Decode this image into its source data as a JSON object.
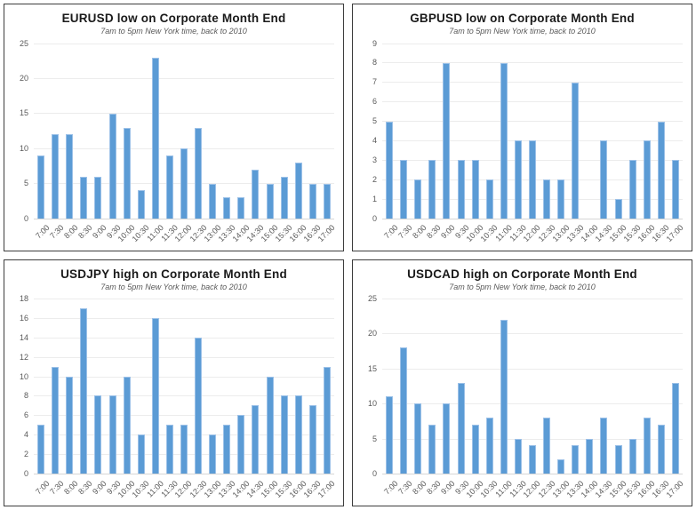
{
  "colors": {
    "bar": "#5b9bd5",
    "bar_edge": "#9cc1e8",
    "gridline": "#ececec",
    "axis_line": "#d6d6d6",
    "panel_border": "#3d3d3d",
    "title": "#1a1a1a",
    "subtitle": "#595959",
    "tick": "#595959",
    "background": "#ffffff"
  },
  "chart_data": [
    {
      "type": "bar",
      "title": "EURUSD low on Corporate Month End",
      "subtitle": "7am to 5pm New York time, back to 2010",
      "xlabel": "",
      "ylabel": "",
      "categories": [
        "7:00",
        "7:30",
        "8:00",
        "8:30",
        "9:00",
        "9:30",
        "10:00",
        "10:30",
        "11:00",
        "11:30",
        "12:00",
        "12:30",
        "13:00",
        "13:30",
        "14:00",
        "14:30",
        "15:00",
        "15:30",
        "16:00",
        "16:30",
        "17:00"
      ],
      "values": [
        9,
        12,
        12,
        6,
        6,
        15,
        13,
        4,
        23,
        9,
        10,
        13,
        5,
        3,
        3,
        7,
        5,
        6,
        8,
        5,
        5
      ],
      "ylim": [
        0,
        25
      ],
      "ytick_step": 5,
      "grid": "horizontal",
      "legend": "none"
    },
    {
      "type": "bar",
      "title": "GBPUSD low on Corporate Month End",
      "subtitle": "7am to 5pm New York time, back to 2010",
      "xlabel": "",
      "ylabel": "",
      "categories": [
        "7:00",
        "7:30",
        "8:00",
        "8:30",
        "9:00",
        "9:30",
        "10:00",
        "10:30",
        "11:00",
        "11:30",
        "12:00",
        "12:30",
        "13:00",
        "13:30",
        "14:00",
        "14:30",
        "15:00",
        "15:30",
        "16:00",
        "16:30",
        "17:00"
      ],
      "values": [
        5,
        3,
        2,
        3,
        8,
        3,
        3,
        2,
        8,
        4,
        4,
        2,
        2,
        7,
        0,
        4,
        1,
        3,
        4,
        5,
        3
      ],
      "ylim": [
        0,
        9
      ],
      "ytick_step": 1,
      "grid": "horizontal",
      "legend": "none"
    },
    {
      "type": "bar",
      "title": "USDJPY high on Corporate Month End",
      "subtitle": "7am to 5pm New York time, back to 2010",
      "xlabel": "",
      "ylabel": "",
      "categories": [
        "7:00",
        "7:30",
        "8:00",
        "8:30",
        "9:00",
        "9:30",
        "10:00",
        "10:30",
        "11:00",
        "11:30",
        "12:00",
        "12:30",
        "13:00",
        "13:30",
        "14:00",
        "14:30",
        "15:00",
        "15:30",
        "16:00",
        "16:30",
        "17:00"
      ],
      "values": [
        5,
        11,
        10,
        17,
        8,
        8,
        10,
        4,
        16,
        5,
        5,
        14,
        4,
        5,
        6,
        7,
        10,
        8,
        8,
        7,
        11
      ],
      "ylim": [
        0,
        18
      ],
      "ytick_step": 2,
      "grid": "horizontal",
      "legend": "none"
    },
    {
      "type": "bar",
      "title": "USDCAD high on Corporate Month End",
      "subtitle": "7am to 5pm New York time, back to 2010",
      "xlabel": "",
      "ylabel": "",
      "categories": [
        "7:00",
        "7:30",
        "8:00",
        "8:30",
        "9:00",
        "9:30",
        "10:00",
        "10:30",
        "11:00",
        "11:30",
        "12:00",
        "12:30",
        "13:00",
        "13:30",
        "14:00",
        "14:30",
        "15:00",
        "15:30",
        "16:00",
        "16:30",
        "17:00"
      ],
      "values": [
        11,
        18,
        10,
        7,
        10,
        13,
        7,
        8,
        22,
        5,
        4,
        8,
        2,
        4,
        5,
        8,
        4,
        5,
        8,
        7,
        13
      ],
      "ylim": [
        0,
        25
      ],
      "ytick_step": 5,
      "grid": "horizontal",
      "legend": "none"
    }
  ]
}
